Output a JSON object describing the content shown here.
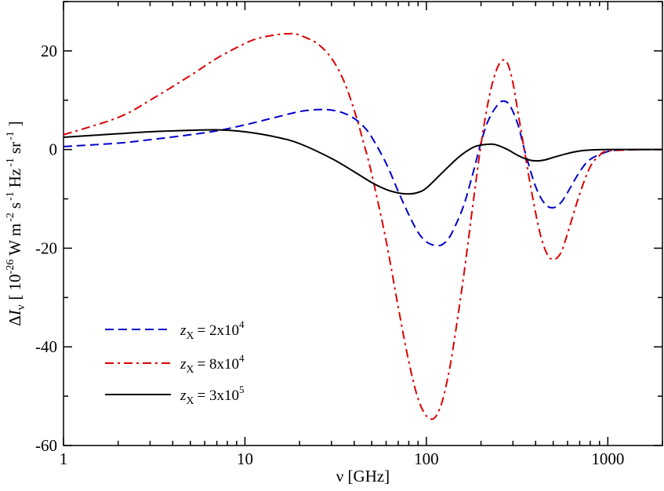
{
  "chart_data": {
    "type": "line",
    "title": "",
    "x_scale": "log",
    "xlim": [
      1,
      2000
    ],
    "ylim": [
      -60,
      30
    ],
    "grid": false,
    "legend_position": "bottom-left",
    "xlabel": {
      "main": "ν [GHz]"
    },
    "ylabel": {
      "delta": "Δ",
      "I": "I",
      "sub": "ν",
      "bracket_open": "[",
      "coef": "10",
      "exp_coef": "-26",
      "u1": "W m",
      "exp1": "-2",
      "u2": "s",
      "exp2": "-1",
      "u3": "Hz",
      "exp3": "-1",
      "u4": "sr",
      "exp4": "-1",
      "bracket_close": "]"
    },
    "x_ticks": [
      {
        "value": 1,
        "label": "1"
      },
      {
        "value": 10,
        "label": "10"
      },
      {
        "value": 100,
        "label": "100"
      },
      {
        "value": 1000,
        "label": "1000"
      }
    ],
    "y_ticks": [
      {
        "value": 20,
        "label": "20"
      },
      {
        "value": 0,
        "label": "0"
      },
      {
        "value": -20,
        "label": "-20"
      },
      {
        "value": -40,
        "label": "-40"
      },
      {
        "value": -60,
        "label": "-60"
      }
    ],
    "series": [
      {
        "legend": {
          "z": "z",
          "sub": "X",
          "eq": "= 2x10",
          "exp": "4"
        },
        "color": "#0000cc",
        "dash": "dashed",
        "x": [
          1,
          2,
          3,
          5,
          7,
          10,
          15,
          20,
          25,
          30,
          35,
          40,
          45,
          50,
          60,
          70,
          80,
          90,
          100,
          110,
          120,
          130,
          140,
          160,
          180,
          200,
          220,
          250,
          270,
          290,
          320,
          350,
          400,
          450,
          500,
          550,
          600,
          700,
          800,
          1000,
          1200,
          1500,
          2000
        ],
        "y": [
          0.6,
          1.3,
          2.0,
          3.0,
          3.8,
          5.0,
          6.6,
          7.7,
          8.1,
          8.0,
          7.4,
          6.3,
          4.7,
          2.5,
          -2.8,
          -8.5,
          -13.2,
          -16.8,
          -18.7,
          -19.4,
          -19.4,
          -18.4,
          -16.5,
          -11.5,
          -5.0,
          1.4,
          6.0,
          9.3,
          9.8,
          8.8,
          5.0,
          -0.5,
          -7.5,
          -11.0,
          -11.8,
          -10.8,
          -8.7,
          -4.5,
          -2.0,
          -0.4,
          -0.1,
          0,
          0
        ]
      },
      {
        "legend": {
          "z": "z",
          "sub": "X",
          "eq": "= 8x10",
          "exp": "4"
        },
        "color": "#dd0000",
        "dash": "dashdot",
        "x": [
          1,
          2,
          3,
          5,
          7,
          10,
          12,
          15,
          18,
          20,
          25,
          30,
          35,
          40,
          45,
          50,
          60,
          70,
          80,
          90,
          100,
          110,
          120,
          130,
          140,
          160,
          180,
          200,
          220,
          240,
          260,
          280,
          300,
          320,
          350,
          380,
          420,
          460,
          500,
          550,
          600,
          700,
          800,
          900,
          1000,
          1500,
          2000
        ],
        "y": [
          3.0,
          6.5,
          10.0,
          15.0,
          18.5,
          21.5,
          22.6,
          23.3,
          23.5,
          23.2,
          21.5,
          18.5,
          14.0,
          8.0,
          1.5,
          -5.0,
          -18.5,
          -32.0,
          -43.0,
          -50.5,
          -54.0,
          -54.5,
          -52.0,
          -47.0,
          -40.5,
          -26.0,
          -11.5,
          1.0,
          10.0,
          15.5,
          18.0,
          17.5,
          13.5,
          7.5,
          -1.0,
          -8.5,
          -16.5,
          -21.0,
          -22.3,
          -21.0,
          -17.0,
          -9.0,
          -3.5,
          -1.2,
          -0.3,
          0,
          0
        ]
      },
      {
        "legend": {
          "z": "z",
          "sub": "X",
          "eq": "= 3x10",
          "exp": "5"
        },
        "color": "#000000",
        "dash": "solid",
        "x": [
          1,
          2,
          3,
          5,
          7,
          10,
          15,
          20,
          30,
          40,
          50,
          60,
          70,
          80,
          90,
          100,
          120,
          150,
          180,
          200,
          230,
          250,
          280,
          320,
          360,
          400,
          450,
          500,
          600,
          700,
          800,
          1000,
          1500,
          2000
        ],
        "y": [
          2.5,
          3.2,
          3.6,
          3.9,
          4.0,
          3.6,
          2.5,
          1.2,
          -1.8,
          -4.5,
          -6.7,
          -8.1,
          -8.8,
          -9.0,
          -8.7,
          -7.8,
          -5.0,
          -1.6,
          0.4,
          0.9,
          1.1,
          0.8,
          0.0,
          -1.2,
          -2.0,
          -2.3,
          -2.1,
          -1.6,
          -0.8,
          -0.3,
          -0.1,
          0,
          0,
          0
        ]
      }
    ]
  }
}
